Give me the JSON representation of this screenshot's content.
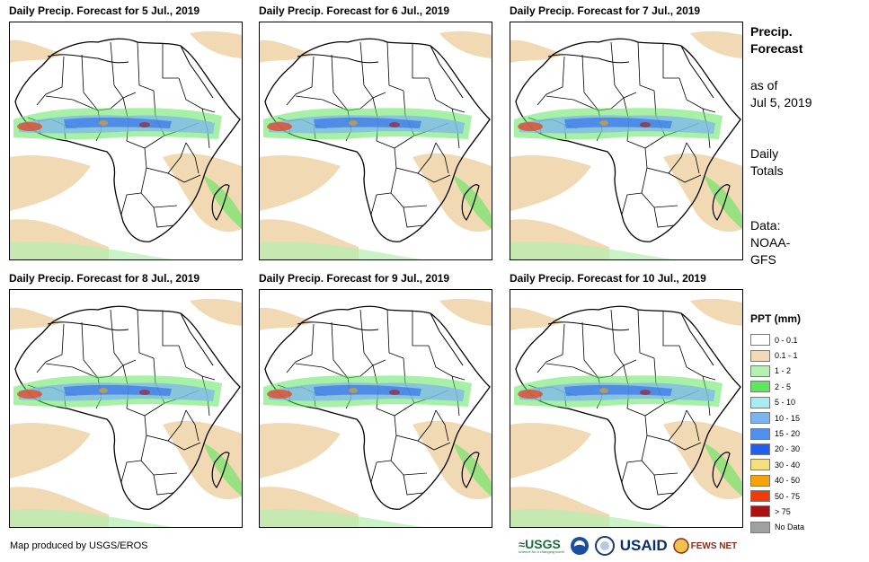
{
  "panels": [
    {
      "title": "Daily Precip. Forecast for 5 Jul., 2019"
    },
    {
      "title": "Daily Precip. Forecast for 6 Jul., 2019"
    },
    {
      "title": "Daily Precip. Forecast for 7 Jul., 2019"
    },
    {
      "title": "Daily Precip. Forecast for 8 Jul., 2019"
    },
    {
      "title": "Daily Precip. Forecast for 9 Jul., 2019"
    },
    {
      "title": "Daily Precip. Forecast for 10 Jul., 2019"
    }
  ],
  "info": {
    "title_line1": "Precip.",
    "title_line2": "Forecast",
    "asof_line1": "as of",
    "asof_line2": "Jul 5, 2019",
    "daily_line1": "Daily",
    "daily_line2": "Totals",
    "data_line1": "Data:",
    "data_line2": "NOAA-",
    "data_line3": "GFS"
  },
  "legend": {
    "title": "PPT (mm)",
    "items": [
      {
        "label": "0 - 0.1",
        "color": "#ffffff"
      },
      {
        "label": "0.1 - 1",
        "color": "#f1d9b3"
      },
      {
        "label": "1 - 2",
        "color": "#b4f0b0"
      },
      {
        "label": "2 - 5",
        "color": "#5ee65e"
      },
      {
        "label": "5 - 10",
        "color": "#a8ecf4"
      },
      {
        "label": "10 - 15",
        "color": "#7eb4ee"
      },
      {
        "label": "15 - 20",
        "color": "#4e8ff0"
      },
      {
        "label": "20 - 30",
        "color": "#1f5ef0"
      },
      {
        "label": "30 - 40",
        "color": "#f7df7e"
      },
      {
        "label": "40 - 50",
        "color": "#f5a30a"
      },
      {
        "label": "50 - 75",
        "color": "#f03a0a"
      },
      {
        "label": "> 75",
        "color": "#a81414"
      },
      {
        "label": "No Data",
        "color": "#a0a0a0"
      }
    ]
  },
  "footer": {
    "credit": "Map produced by USGS/EROS",
    "logos": {
      "usgs": "USGS",
      "usgs_tagline": "science for a changing world",
      "usaid": "USAID",
      "fewsnet": "FEWS NET"
    }
  }
}
